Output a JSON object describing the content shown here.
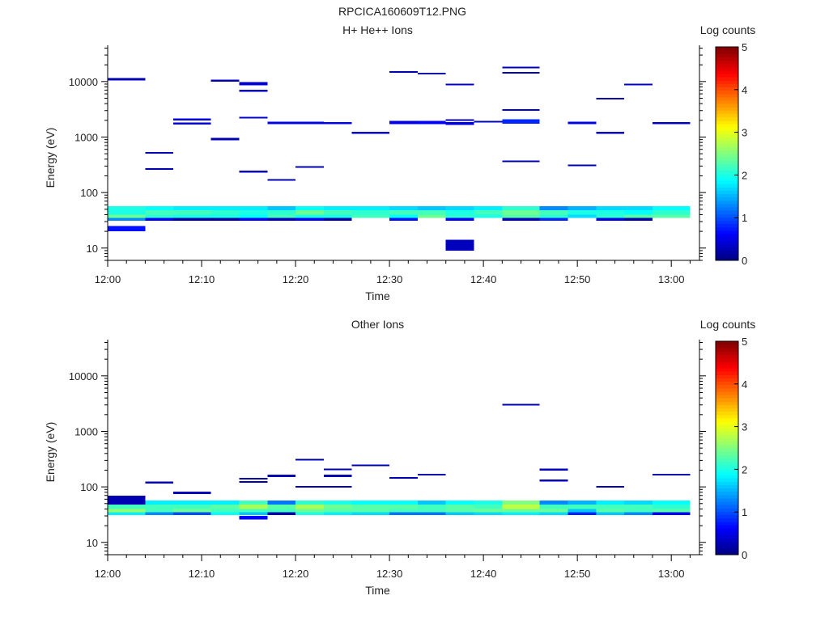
{
  "figure_title": "RPCICA160609T12.PNG",
  "chart_data": [
    {
      "type": "heatmap",
      "title": "H+ He++ Ions",
      "xlabel": "Time",
      "ylabel": "Energy (eV)",
      "y_scale": "log",
      "xlim": [
        "12:00",
        "13:03"
      ],
      "ylim": [
        6,
        45000
      ],
      "x_ticks": [
        "12:00",
        "12:10",
        "12:20",
        "12:30",
        "12:40",
        "12:50",
        "13:00"
      ],
      "y_ticks": [
        "10",
        "100",
        "1000",
        "10000"
      ],
      "colorbar": {
        "label": "Log counts",
        "range": [
          0,
          5
        ],
        "ticks": [
          "0",
          "1",
          "2",
          "3",
          "4",
          "5"
        ],
        "colormap": "jet"
      },
      "time_bins": [
        "12:00",
        "12:04",
        "12:07",
        "12:11",
        "12:14",
        "12:17",
        "12:20",
        "12:23",
        "12:26",
        "12:30",
        "12:33",
        "12:36",
        "12:39",
        "12:42",
        "12:46",
        "12:49",
        "12:52",
        "12:55",
        "12:58",
        "13:02"
      ],
      "cells": [
        [
          0,
          40,
          57,
          2.0
        ],
        [
          0,
          35,
          40,
          2.4
        ],
        [
          0,
          31,
          35,
          1.3
        ],
        [
          0,
          20,
          25,
          0.7
        ],
        [
          0,
          10500,
          11500,
          0.25
        ],
        [
          1,
          48,
          57,
          1.9
        ],
        [
          1,
          40,
          48,
          2.2
        ],
        [
          1,
          35,
          40,
          2.1
        ],
        [
          1,
          31,
          35,
          0.6
        ],
        [
          1,
          500,
          540,
          0.25
        ],
        [
          1,
          255,
          275,
          0.25
        ],
        [
          2,
          48,
          57,
          1.8
        ],
        [
          2,
          40,
          48,
          2.2
        ],
        [
          2,
          35,
          40,
          2.0
        ],
        [
          2,
          31,
          35,
          0.2
        ],
        [
          2,
          2000,
          2150,
          0.5
        ],
        [
          2,
          1680,
          1820,
          0.4
        ],
        [
          3,
          48,
          57,
          1.8
        ],
        [
          3,
          40,
          48,
          2.1
        ],
        [
          3,
          35,
          40,
          2.0
        ],
        [
          3,
          31,
          35,
          0.2
        ],
        [
          3,
          10000,
          10800,
          0.25
        ],
        [
          3,
          880,
          960,
          0.25
        ],
        [
          4,
          48,
          57,
          1.8
        ],
        [
          4,
          40,
          48,
          2.0
        ],
        [
          4,
          35,
          40,
          1.9
        ],
        [
          4,
          31,
          35,
          0.6
        ],
        [
          4,
          8500,
          9800,
          0.4
        ],
        [
          4,
          6500,
          7100,
          0.35
        ],
        [
          4,
          2150,
          2300,
          0.4
        ],
        [
          4,
          230,
          250,
          0.3
        ],
        [
          5,
          48,
          57,
          1.6
        ],
        [
          5,
          40,
          48,
          2.1
        ],
        [
          5,
          35,
          40,
          2.2
        ],
        [
          5,
          31,
          35,
          0.3
        ],
        [
          5,
          1700,
          1900,
          0.5
        ],
        [
          5,
          165,
          175,
          0.25
        ],
        [
          6,
          48,
          57,
          1.9
        ],
        [
          6,
          40,
          48,
          2.4
        ],
        [
          6,
          35,
          40,
          2.0
        ],
        [
          6,
          31,
          35,
          0.6
        ],
        [
          6,
          1700,
          1900,
          0.5
        ],
        [
          6,
          280,
          300,
          0.25
        ],
        [
          7,
          48,
          57,
          1.8
        ],
        [
          7,
          40,
          48,
          2.2
        ],
        [
          7,
          35,
          40,
          2.0
        ],
        [
          7,
          31,
          35,
          0.2
        ],
        [
          7,
          1700,
          1850,
          0.6
        ],
        [
          8,
          48,
          57,
          1.8
        ],
        [
          8,
          40,
          48,
          2.1
        ],
        [
          8,
          35,
          40,
          2.2
        ],
        [
          8,
          1150,
          1250,
          0.35
        ],
        [
          9,
          48,
          57,
          1.7
        ],
        [
          9,
          40,
          48,
          2.2
        ],
        [
          9,
          35,
          40,
          1.9
        ],
        [
          9,
          31,
          35,
          0.7
        ],
        [
          9,
          14500,
          15500,
          0.25
        ],
        [
          9,
          1700,
          1950,
          0.5
        ],
        [
          10,
          48,
          57,
          1.6
        ],
        [
          10,
          40,
          48,
          2.2
        ],
        [
          10,
          35,
          40,
          2.4
        ],
        [
          10,
          13500,
          14500,
          0.25
        ],
        [
          10,
          1700,
          1950,
          0.6
        ],
        [
          11,
          48,
          57,
          1.7
        ],
        [
          11,
          40,
          48,
          2.0
        ],
        [
          11,
          35,
          40,
          2.1
        ],
        [
          11,
          31,
          35,
          0.6
        ],
        [
          11,
          8500,
          9200,
          0.35
        ],
        [
          11,
          1950,
          2100,
          0.25
        ],
        [
          11,
          1650,
          1850,
          0.5
        ],
        [
          11,
          9,
          14,
          0.3
        ],
        [
          12,
          48,
          57,
          1.8
        ],
        [
          12,
          40,
          48,
          2.2
        ],
        [
          12,
          35,
          40,
          2.0
        ],
        [
          12,
          1850,
          1950,
          0.3
        ],
        [
          13,
          48,
          57,
          2.1
        ],
        [
          13,
          40,
          48,
          2.4
        ],
        [
          13,
          35,
          40,
          2.3
        ],
        [
          13,
          31,
          35,
          0.3
        ],
        [
          13,
          17500,
          18500,
          0.25
        ],
        [
          13,
          14000,
          15000,
          0.25
        ],
        [
          13,
          3000,
          3200,
          0.4
        ],
        [
          13,
          1750,
          2100,
          0.8
        ],
        [
          13,
          360,
          380,
          0.25
        ],
        [
          14,
          48,
          57,
          1.3
        ],
        [
          14,
          40,
          48,
          2.2
        ],
        [
          14,
          35,
          40,
          2.1
        ],
        [
          14,
          31,
          35,
          0.8
        ],
        [
          15,
          48,
          57,
          1.5
        ],
        [
          15,
          40,
          48,
          2.0
        ],
        [
          15,
          35,
          40,
          1.7
        ],
        [
          15,
          1700,
          1900,
          0.5
        ],
        [
          15,
          300,
          320,
          0.25
        ],
        [
          16,
          48,
          57,
          1.7
        ],
        [
          16,
          40,
          48,
          2.0
        ],
        [
          16,
          35,
          40,
          2.1
        ],
        [
          16,
          31,
          35,
          0.5
        ],
        [
          16,
          4800,
          5100,
          0.25
        ],
        [
          16,
          1150,
          1250,
          0.3
        ],
        [
          17,
          48,
          57,
          1.7
        ],
        [
          17,
          40,
          48,
          1.9
        ],
        [
          17,
          35,
          40,
          2.3
        ],
        [
          17,
          31,
          35,
          0.2
        ],
        [
          17,
          8500,
          9200,
          0.35
        ],
        [
          18,
          48,
          57,
          1.9
        ],
        [
          18,
          40,
          48,
          2.1
        ],
        [
          18,
          35,
          40,
          2.3
        ],
        [
          18,
          1700,
          1850,
          0.35
        ]
      ]
    },
    {
      "type": "heatmap",
      "title": "Other Ions",
      "xlabel": "Time",
      "ylabel": "Energy (eV)",
      "y_scale": "log",
      "xlim": [
        "12:00",
        "13:03"
      ],
      "ylim": [
        6,
        45000
      ],
      "x_ticks": [
        "12:00",
        "12:10",
        "12:20",
        "12:30",
        "12:40",
        "12:50",
        "13:00"
      ],
      "y_ticks": [
        "10",
        "100",
        "1000",
        "10000"
      ],
      "colorbar": {
        "label": "Log counts",
        "range": [
          0,
          5
        ],
        "ticks": [
          "0",
          "1",
          "2",
          "3",
          "4",
          "5"
        ],
        "colormap": "jet"
      },
      "time_bins": [
        "12:00",
        "12:04",
        "12:07",
        "12:11",
        "12:14",
        "12:17",
        "12:20",
        "12:23",
        "12:26",
        "12:30",
        "12:33",
        "12:36",
        "12:39",
        "12:42",
        "12:46",
        "12:49",
        "12:52",
        "12:55",
        "12:58",
        "13:02"
      ],
      "cells": [
        [
          0,
          48,
          70,
          0.25
        ],
        [
          0,
          40,
          48,
          2.2
        ],
        [
          0,
          35,
          40,
          2.6
        ],
        [
          0,
          31,
          35,
          1.8
        ],
        [
          1,
          48,
          57,
          1.8
        ],
        [
          1,
          40,
          48,
          2.2
        ],
        [
          1,
          35,
          40,
          2.2
        ],
        [
          1,
          31,
          35,
          1.3
        ],
        [
          1,
          115,
          125,
          0.25
        ],
        [
          2,
          48,
          57,
          1.8
        ],
        [
          2,
          40,
          48,
          2.2
        ],
        [
          2,
          35,
          40,
          2.4
        ],
        [
          2,
          31,
          35,
          1.0
        ],
        [
          2,
          74,
          82,
          0.3
        ],
        [
          3,
          48,
          57,
          1.8
        ],
        [
          3,
          40,
          48,
          2.3
        ],
        [
          3,
          35,
          40,
          2.2
        ],
        [
          3,
          31,
          35,
          1.9
        ],
        [
          4,
          48,
          57,
          2.2
        ],
        [
          4,
          40,
          48,
          2.7
        ],
        [
          4,
          35,
          40,
          2.2
        ],
        [
          4,
          31,
          35,
          1.6
        ],
        [
          4,
          26,
          30,
          0.6
        ],
        [
          4,
          135,
          145,
          0.25
        ],
        [
          4,
          118,
          126,
          0.25
        ],
        [
          5,
          48,
          57,
          1.2
        ],
        [
          5,
          40,
          48,
          2.3
        ],
        [
          5,
          35,
          40,
          2.2
        ],
        [
          5,
          31,
          35,
          0.25
        ],
        [
          5,
          150,
          165,
          0.25
        ],
        [
          6,
          48,
          57,
          2.1
        ],
        [
          6,
          40,
          48,
          2.7
        ],
        [
          6,
          35,
          40,
          2.4
        ],
        [
          6,
          31,
          35,
          2.0
        ],
        [
          6,
          300,
          320,
          0.25
        ],
        [
          6,
          97,
          103,
          0.25
        ],
        [
          7,
          48,
          57,
          2.0
        ],
        [
          7,
          40,
          48,
          2.4
        ],
        [
          7,
          35,
          40,
          2.3
        ],
        [
          7,
          31,
          35,
          1.8
        ],
        [
          7,
          200,
          215,
          0.25
        ],
        [
          7,
          150,
          165,
          0.25
        ],
        [
          7,
          97,
          103,
          0.25
        ],
        [
          8,
          48,
          57,
          1.9
        ],
        [
          8,
          40,
          48,
          2.3
        ],
        [
          8,
          35,
          40,
          2.3
        ],
        [
          8,
          31,
          35,
          1.7
        ],
        [
          8,
          238,
          252,
          0.25
        ],
        [
          9,
          48,
          57,
          1.9
        ],
        [
          9,
          40,
          48,
          2.3
        ],
        [
          9,
          35,
          40,
          2.2
        ],
        [
          9,
          31,
          35,
          1.2
        ],
        [
          9,
          140,
          150,
          0.25
        ],
        [
          10,
          48,
          57,
          1.6
        ],
        [
          10,
          40,
          48,
          2.2
        ],
        [
          10,
          35,
          40,
          2.2
        ],
        [
          10,
          31,
          35,
          1.2
        ],
        [
          10,
          165,
          172,
          0.25
        ],
        [
          11,
          48,
          57,
          1.9
        ],
        [
          11,
          40,
          48,
          2.3
        ],
        [
          11,
          35,
          40,
          2.3
        ],
        [
          11,
          31,
          35,
          1.6
        ],
        [
          12,
          48,
          57,
          2.0
        ],
        [
          12,
          40,
          48,
          2.2
        ],
        [
          12,
          35,
          40,
          2.4
        ],
        [
          12,
          31,
          35,
          1.7
        ],
        [
          13,
          48,
          57,
          2.5
        ],
        [
          13,
          40,
          48,
          2.8
        ],
        [
          13,
          35,
          40,
          2.4
        ],
        [
          13,
          31,
          35,
          1.8
        ],
        [
          13,
          2950,
          3150,
          0.25
        ],
        [
          14,
          48,
          57,
          1.3
        ],
        [
          14,
          40,
          48,
          2.2
        ],
        [
          14,
          35,
          40,
          2.4
        ],
        [
          14,
          31,
          35,
          1.7
        ],
        [
          14,
          198,
          212,
          0.3
        ],
        [
          14,
          125,
          135,
          0.3
        ],
        [
          15,
          48,
          57,
          1.5
        ],
        [
          15,
          40,
          48,
          2.2
        ],
        [
          15,
          35,
          40,
          1.6
        ],
        [
          15,
          31,
          35,
          0.8
        ],
        [
          16,
          48,
          57,
          1.8
        ],
        [
          16,
          40,
          48,
          2.2
        ],
        [
          16,
          35,
          40,
          2.3
        ],
        [
          16,
          31,
          35,
          1.6
        ],
        [
          16,
          97,
          103,
          0.25
        ],
        [
          17,
          48,
          57,
          1.7
        ],
        [
          17,
          40,
          48,
          2.2
        ],
        [
          17,
          35,
          40,
          2.2
        ],
        [
          17,
          31,
          35,
          1.3
        ],
        [
          18,
          48,
          57,
          1.9
        ],
        [
          18,
          40,
          48,
          2.1
        ],
        [
          18,
          35,
          40,
          2.3
        ],
        [
          18,
          31,
          35,
          0.6
        ],
        [
          18,
          164,
          172,
          0.25
        ]
      ]
    }
  ]
}
